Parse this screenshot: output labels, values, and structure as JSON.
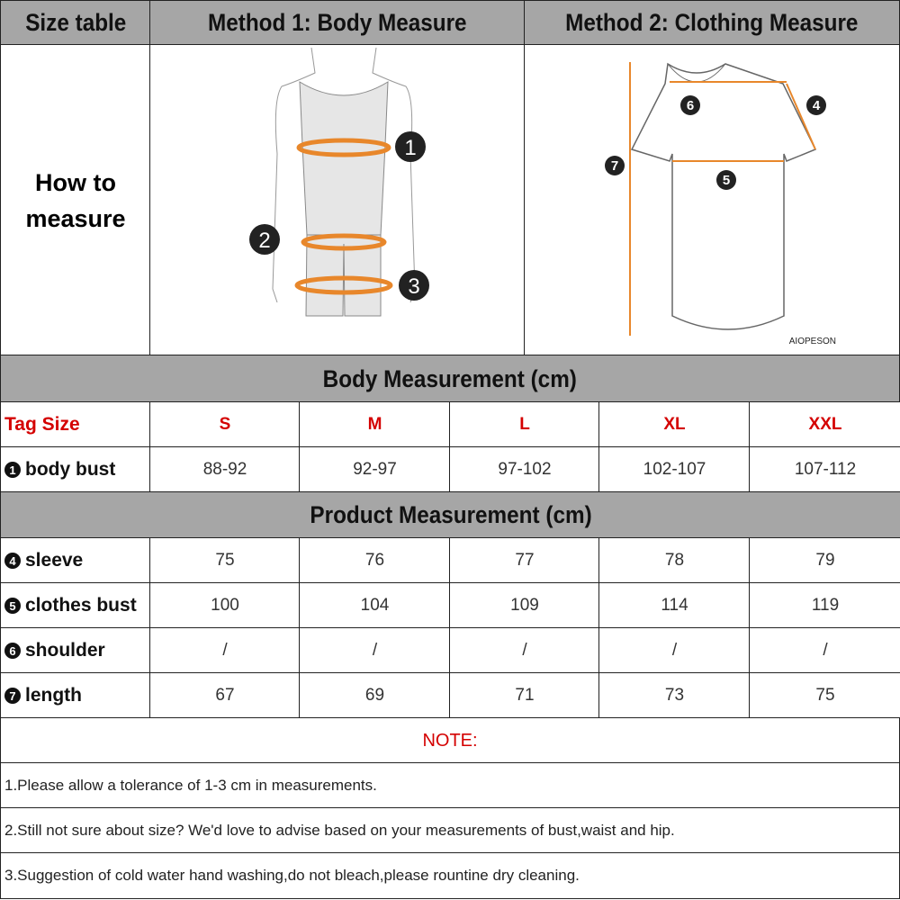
{
  "header": {
    "col1": "Size table",
    "col2": "Method 1: Body  Measure",
    "col3": "Method 2: Clothing Measure"
  },
  "how_to": {
    "line1": "How to",
    "line2": "measure",
    "brand": "AIOPESON",
    "accent": "#e8872b"
  },
  "body_section": {
    "title": "Body Measurement (cm)",
    "tag_label": "Tag Size",
    "sizes": [
      "S",
      "M",
      "L",
      "XL",
      "XXL"
    ],
    "rows": [
      {
        "num": "1",
        "label": "body bust",
        "values": [
          "88-92",
          "92-97",
          "97-102",
          "102-107",
          "107-112"
        ]
      }
    ]
  },
  "product_section": {
    "title": "Product Measurement (cm)",
    "rows": [
      {
        "num": "4",
        "label": "sleeve",
        "values": [
          "75",
          "76",
          "77",
          "78",
          "79"
        ]
      },
      {
        "num": "5",
        "label": "clothes bust",
        "values": [
          "100",
          "104",
          "109",
          "114",
          "119"
        ]
      },
      {
        "num": "6",
        "label": "shoulder",
        "values": [
          "/",
          "/",
          "/",
          "/",
          "/"
        ]
      },
      {
        "num": "7",
        "label": "length",
        "values": [
          "67",
          "69",
          "71",
          "73",
          "75"
        ]
      }
    ]
  },
  "notes": {
    "title": "NOTE:",
    "items": [
      "1.Please allow a tolerance of 1-3 cm in measurements.",
      "2.Still not sure about size? We'd love to advise based on your measurements of bust,waist and hip.",
      "3.Suggestion of cold water hand washing,do not bleach,please rountine dry cleaning."
    ]
  }
}
